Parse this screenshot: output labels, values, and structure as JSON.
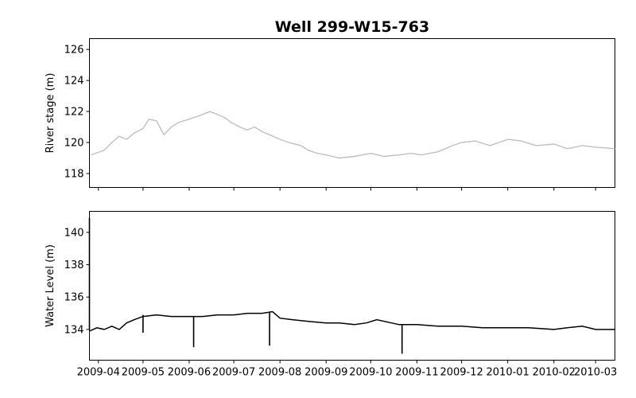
{
  "figure": {
    "title": "Well 299-W15-763"
  },
  "chart_data": [
    {
      "type": "line",
      "ylabel": "River stage (m)",
      "xlabel": "",
      "xlim": [
        "2009-03-26",
        "2010-03-14"
      ],
      "ylim": [
        117.1,
        126.7
      ],
      "yticks": [
        118,
        120,
        122,
        124,
        126
      ],
      "series_color": "#c0c0c0",
      "series": [
        {
          "x": [
            "2009-03-27",
            "2009-04-05",
            "2009-04-10",
            "2009-04-15",
            "2009-04-20",
            "2009-04-25",
            "2009-05-01",
            "2009-05-05",
            "2009-05-10",
            "2009-05-15",
            "2009-05-20",
            "2009-05-25",
            "2009-06-01",
            "2009-06-07",
            "2009-06-15",
            "2009-06-20",
            "2009-06-25",
            "2009-06-29",
            "2009-07-05",
            "2009-07-10",
            "2009-07-15",
            "2009-07-20",
            "2009-07-25",
            "2009-08-01",
            "2009-08-07",
            "2009-08-15",
            "2009-08-20",
            "2009-08-26",
            "2009-09-01",
            "2009-09-10",
            "2009-09-20",
            "2009-10-01",
            "2009-10-10",
            "2009-10-20",
            "2009-10-28",
            "2009-11-04",
            "2009-11-15",
            "2009-11-25",
            "2009-12-01",
            "2009-12-10",
            "2009-12-20",
            "2010-01-01",
            "2010-01-10",
            "2010-01-20",
            "2010-02-01",
            "2010-02-10",
            "2010-02-20",
            "2010-03-01",
            "2010-03-14"
          ],
          "values": [
            119.2,
            119.5,
            120.0,
            120.4,
            120.2,
            120.6,
            120.9,
            121.5,
            121.4,
            120.5,
            121.0,
            121.3,
            121.5,
            121.7,
            122.0,
            121.8,
            121.6,
            121.3,
            121.0,
            120.8,
            121.0,
            120.7,
            120.5,
            120.2,
            120.0,
            119.8,
            119.5,
            119.3,
            119.2,
            119.0,
            119.1,
            119.3,
            119.1,
            119.2,
            119.3,
            119.2,
            119.4,
            119.8,
            120.0,
            120.1,
            119.8,
            120.2,
            120.1,
            119.8,
            119.9,
            119.6,
            119.8,
            119.7,
            119.6
          ]
        }
      ]
    },
    {
      "type": "line",
      "ylabel": "Water Level (m)",
      "xlabel": "",
      "xlim": [
        "2009-03-26",
        "2010-03-14"
      ],
      "ylim": [
        132.1,
        141.3
      ],
      "yticks": [
        134,
        136,
        138,
        140
      ],
      "xticklabels": [
        "2009-04",
        "2009-05",
        "2009-06",
        "2009-07",
        "2009-08",
        "2009-09",
        "2009-10",
        "2009-11",
        "2009-12",
        "2010-01",
        "2010-02",
        "2010-03"
      ],
      "xticks": [
        "2009-04-01",
        "2009-05-01",
        "2009-06-01",
        "2009-07-01",
        "2009-08-01",
        "2009-09-01",
        "2009-10-01",
        "2009-11-01",
        "2009-12-01",
        "2010-01-01",
        "2010-02-01",
        "2010-03-01"
      ],
      "series_color": "#000000",
      "series": [
        {
          "x": [
            "2009-03-26",
            "2009-03-31",
            "2009-04-05",
            "2009-04-10",
            "2009-04-15",
            "2009-04-20",
            "2009-04-25",
            "2009-05-01",
            "2009-05-10",
            "2009-05-20",
            "2009-06-01",
            "2009-06-10",
            "2009-06-20",
            "2009-07-01",
            "2009-07-10",
            "2009-07-20",
            "2009-07-27",
            "2009-08-01",
            "2009-08-10",
            "2009-08-20",
            "2009-09-01",
            "2009-09-10",
            "2009-09-20",
            "2009-09-28",
            "2009-10-05",
            "2009-10-10",
            "2009-10-20",
            "2009-11-01",
            "2009-11-15",
            "2009-12-01",
            "2009-12-15",
            "2010-01-01",
            "2010-01-15",
            "2010-02-01",
            "2010-02-10",
            "2010-02-20",
            "2010-03-01",
            "2010-03-14"
          ],
          "values": [
            133.9,
            134.1,
            134.0,
            134.2,
            134.0,
            134.4,
            134.6,
            134.8,
            134.9,
            134.8,
            134.8,
            134.8,
            134.9,
            134.9,
            135.0,
            135.0,
            135.1,
            134.7,
            134.6,
            134.5,
            134.4,
            134.4,
            134.3,
            134.4,
            134.6,
            134.5,
            134.3,
            134.3,
            134.2,
            134.2,
            134.1,
            134.1,
            134.1,
            134.0,
            134.1,
            134.2,
            134.0,
            134.0
          ]
        }
      ],
      "spikes": [
        {
          "x": "2009-03-26",
          "from": 134.0,
          "to": 140.9
        },
        {
          "x": "2009-05-01",
          "from": 134.9,
          "to": 133.8
        },
        {
          "x": "2009-06-04",
          "from": 134.8,
          "to": 132.9
        },
        {
          "x": "2009-07-25",
          "from": 135.1,
          "to": 133.0
        },
        {
          "x": "2009-10-22",
          "from": 134.3,
          "to": 132.5
        }
      ]
    }
  ]
}
